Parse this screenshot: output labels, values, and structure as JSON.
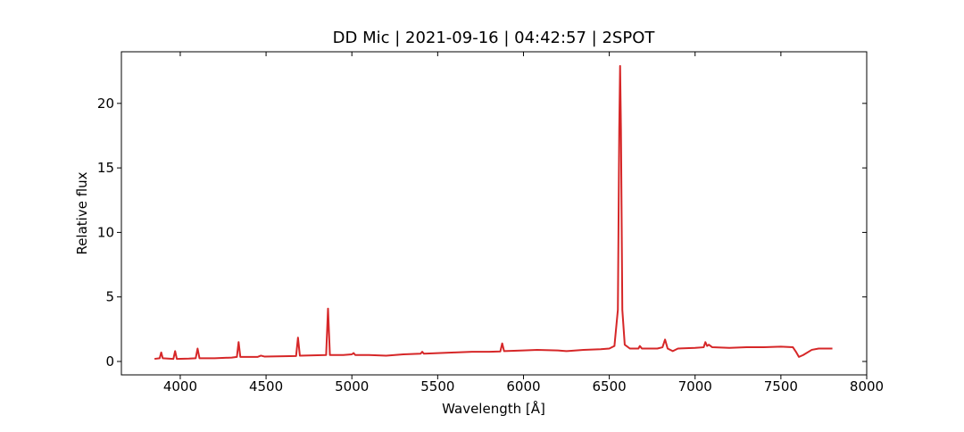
{
  "chart_data": {
    "type": "line",
    "title": "DD Mic | 2021-09-16 | 04:42:57 | 2SPOT",
    "xlabel": "Wavelength [Å]",
    "ylabel": "Relative flux",
    "color": "#d62728",
    "xlim": [
      3657,
      8000
    ],
    "ylim": [
      -1.04,
      24.0
    ],
    "xticks": [
      4000,
      4500,
      5000,
      5500,
      6000,
      6500,
      7000,
      7500,
      8000
    ],
    "yticks": [
      0,
      5,
      10,
      15,
      20
    ],
    "x": [
      3850,
      3880,
      3889,
      3898,
      3960,
      3970,
      3980,
      4050,
      4090,
      4101,
      4112,
      4200,
      4300,
      4330,
      4340,
      4350,
      4450,
      4470,
      4490,
      4600,
      4675,
      4686,
      4697,
      4800,
      4850,
      4861,
      4872,
      4950,
      5000,
      5010,
      5020,
      5100,
      5200,
      5300,
      5400,
      5410,
      5420,
      5500,
      5600,
      5700,
      5800,
      5865,
      5876,
      5887,
      6000,
      6080,
      6200,
      6250,
      6350,
      6450,
      6500,
      6530,
      6550,
      6558,
      6563,
      6568,
      6576,
      6590,
      6620,
      6670,
      6678,
      6690,
      6780,
      6810,
      6825,
      6840,
      6870,
      6900,
      7000,
      7050,
      7060,
      7070,
      7080,
      7100,
      7200,
      7300,
      7400,
      7500,
      7570,
      7590,
      7605,
      7630,
      7680,
      7720,
      7800
    ],
    "values": [
      0.2,
      0.25,
      0.7,
      0.25,
      0.2,
      0.8,
      0.2,
      0.22,
      0.25,
      1.0,
      0.25,
      0.25,
      0.3,
      0.35,
      1.5,
      0.35,
      0.35,
      0.45,
      0.38,
      0.4,
      0.42,
      1.85,
      0.45,
      0.48,
      0.5,
      4.1,
      0.5,
      0.5,
      0.55,
      0.65,
      0.5,
      0.5,
      0.45,
      0.55,
      0.6,
      0.75,
      0.6,
      0.65,
      0.7,
      0.75,
      0.75,
      0.78,
      1.4,
      0.8,
      0.85,
      0.9,
      0.85,
      0.8,
      0.9,
      0.95,
      1.0,
      1.2,
      4.0,
      18.0,
      22.9,
      18.0,
      4.0,
      1.3,
      1.0,
      1.0,
      1.2,
      1.0,
      1.0,
      1.1,
      1.7,
      1.0,
      0.8,
      1.0,
      1.05,
      1.1,
      1.5,
      1.2,
      1.3,
      1.1,
      1.05,
      1.1,
      1.1,
      1.15,
      1.1,
      0.7,
      0.35,
      0.5,
      0.9,
      1.0,
      1.0
    ]
  }
}
